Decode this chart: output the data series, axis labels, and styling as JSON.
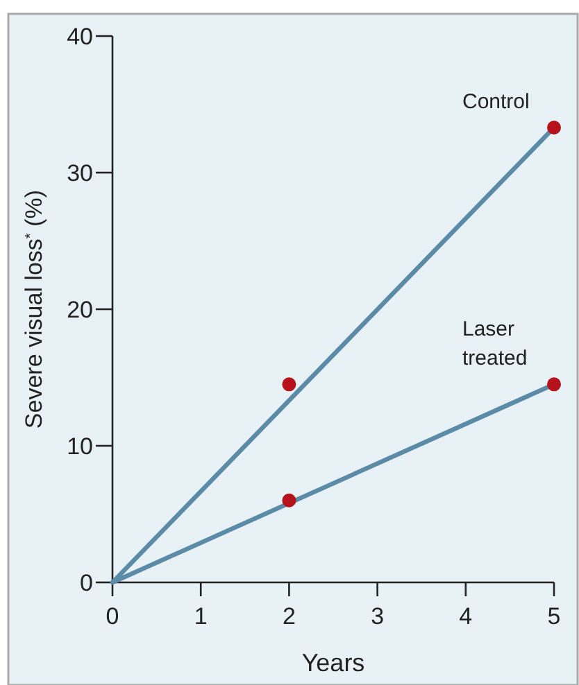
{
  "chart_data": {
    "type": "line",
    "xlabel": "Years",
    "ylabel": "Severe visual loss$^{*}$ (%)",
    "xlim": [
      0,
      5
    ],
    "ylim": [
      0,
      40
    ],
    "xticks": [
      0,
      1,
      2,
      3,
      4,
      5
    ],
    "yticks": [
      0,
      10,
      20,
      30,
      40
    ],
    "line_style": "solid",
    "series": [
      {
        "name": "Control",
        "color": "#5b8ba6",
        "x": [
          0,
          5
        ],
        "values": [
          0,
          33.3
        ]
      },
      {
        "name": "Laser treated",
        "color": "#5b8ba6",
        "x": [
          0,
          5
        ],
        "values": [
          0,
          14.5
        ]
      },
      {
        "type": "scatter",
        "marker": "circle",
        "color": "#b5121b",
        "x": [
          2,
          5
        ],
        "values": [
          14.5,
          33.3
        ]
      },
      {
        "type": "scatter",
        "marker": "circle",
        "color": "#b5121b",
        "x": [
          2,
          5
        ],
        "values": [
          6,
          14.5
        ]
      }
    ]
  }
}
